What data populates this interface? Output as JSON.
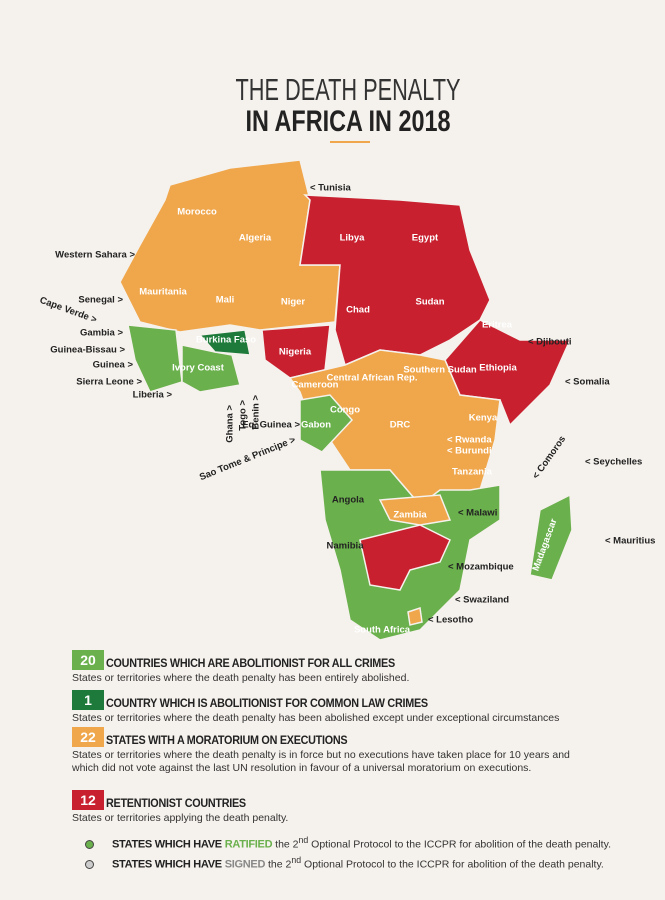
{
  "title": {
    "line1": "THE DEATH PENALTY",
    "line2": "IN AFRICA IN 2018"
  },
  "map_labels": [
    "< Tunisia",
    "Morocco",
    "Algeria",
    "Libya",
    "Egypt",
    "Western Sahara >",
    "Mauritania",
    "Mali",
    "Niger",
    "Chad",
    "Sudan",
    "Eritrea",
    "< Djibouti",
    "Senegal >",
    "Cape Verde >",
    "Gambia >",
    "Guinea-Bissau >",
    "Guinea >",
    "Sierra Leone >",
    "Liberia >",
    "Burkina Faso",
    "Ivory Coast",
    "Nigeria",
    "Ghana >",
    "Togo >",
    "Benin >",
    "Eq. Guinea >",
    "Cameroon",
    "Central African Rep.",
    "Southern Sudan",
    "Ethiopia",
    "< Somalia",
    "Gabon",
    "Congo",
    "DRC",
    "Kenya",
    "< Rwanda",
    "< Burundi",
    "Sao Tome & Principe >",
    "Tanzania",
    "< Comoros",
    "< Seychelles",
    "Angola",
    "Zambia",
    "< Malawi",
    "Madagascar",
    "< Mauritius",
    "Namibia",
    "< Mozambique",
    "< Swaziland",
    "< Lesotho",
    "South Africa"
  ],
  "legend": [
    {
      "count": 20,
      "heading": "COUNTRIES WHICH ARE ABOLITIONIST FOR ALL CRIMES",
      "description": "States or territories where the death penalty has been entirely abolished."
    },
    {
      "count": 1,
      "heading": "COUNTRY WHICH IS ABOLITIONIST FOR COMMON LAW CRIMES",
      "description": "States or territories where the death penalty has been abolished except under exceptional circumstances"
    },
    {
      "count": 22,
      "heading": "STATES WITH A MORATORIUM ON EXECUTIONS",
      "description": "States or territories where the death penalty is in force but no executions have taken place for 10 years and which did not vote against the last UN resolution in favour of a universal moratorium on executions."
    },
    {
      "count": 12,
      "heading": "RETENTIONIST COUNTRIES",
      "description": "States or territories applying the death penalty."
    }
  ],
  "protocol": [
    {
      "prefix": "STATES WHICH HAVE",
      "status": "RATIFIED",
      "text": "the 2",
      "sup": "nd",
      "rest": "Optional Protocol to the ICCPR for abolition of the death penalty."
    },
    {
      "prefix": "STATES WHICH HAVE",
      "status": "SIGNED",
      "text": "the 2",
      "sup": "nd",
      "rest": "Optional Protocol to the ICCPR for abolition of the death penalty."
    }
  ]
}
